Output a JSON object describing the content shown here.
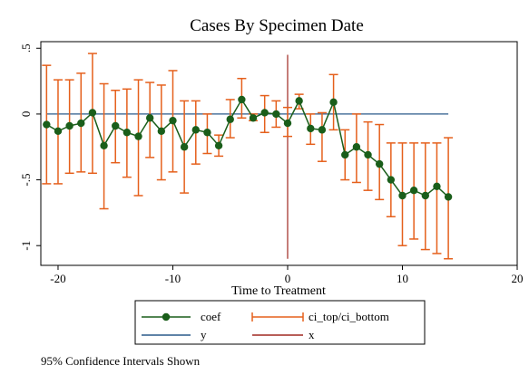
{
  "chart_data": {
    "type": "line",
    "title": "Cases By Specimen Date",
    "xlabel": "Time to Treatment",
    "ylabel": "",
    "xlim": [
      -21.5,
      20
    ],
    "ylim": [
      -1.15,
      0.55
    ],
    "xticks": [
      -20,
      -10,
      0,
      10,
      20
    ],
    "yticks": [
      0.5,
      0,
      -0.5,
      -1
    ],
    "ytick_labels": [
      ".5",
      "0",
      "-.5",
      "-1"
    ],
    "grid": false,
    "legend": [
      {
        "label": "coef",
        "color": "#1a5e1a"
      },
      {
        "label": "ci_top/ci_bottom",
        "color": "#e5601c"
      },
      {
        "label": "y",
        "color": "#2a5a8a"
      },
      {
        "label": "x",
        "color": "#a02820"
      }
    ],
    "note": "95% Confidence Intervals Shown",
    "series": [
      {
        "name": "coef",
        "x": [
          -21,
          -20,
          -19,
          -18,
          -17,
          -16,
          -15,
          -14,
          -13,
          -12,
          -11,
          -10,
          -9,
          -8,
          -7,
          -6,
          -5,
          -4,
          -3,
          -2,
          -1,
          0,
          1,
          2,
          3,
          4,
          5,
          6,
          7,
          8,
          9,
          10,
          11,
          12,
          13,
          14
        ],
        "values": [
          -0.08,
          -0.13,
          -0.09,
          -0.07,
          0.01,
          -0.24,
          -0.09,
          -0.14,
          -0.17,
          -0.03,
          -0.13,
          -0.05,
          -0.25,
          -0.12,
          -0.14,
          -0.24,
          -0.04,
          0.11,
          -0.03,
          0.01,
          0.0,
          -0.07,
          0.1,
          -0.11,
          -0.12,
          0.09,
          -0.31,
          -0.25,
          -0.31,
          -0.38,
          -0.5,
          -0.62,
          -0.58,
          -0.62,
          -0.55,
          -0.63
        ]
      },
      {
        "name": "ci_top/ci_bottom",
        "x": [
          -21,
          -20,
          -19,
          -18,
          -17,
          -16,
          -15,
          -14,
          -13,
          -12,
          -11,
          -10,
          -9,
          -8,
          -7,
          -6,
          -5,
          -4,
          -3,
          -2,
          -1,
          0,
          1,
          2,
          3,
          4,
          5,
          6,
          7,
          8,
          9,
          10,
          11,
          12,
          13,
          14
        ],
        "ci_top": [
          0.37,
          0.26,
          0.26,
          0.31,
          0.46,
          0.23,
          0.18,
          0.19,
          0.26,
          0.24,
          0.22,
          0.33,
          0.1,
          0.1,
          0.0,
          -0.16,
          0.11,
          0.27,
          0.0,
          0.14,
          0.1,
          0.05,
          0.15,
          0.0,
          0.01,
          0.3,
          -0.12,
          0.0,
          -0.06,
          -0.08,
          -0.22,
          -0.22,
          -0.22,
          -0.22,
          -0.22,
          -0.18
        ],
        "ci_bottom": [
          -0.53,
          -0.53,
          -0.45,
          -0.44,
          -0.45,
          -0.72,
          -0.37,
          -0.48,
          -0.62,
          -0.33,
          -0.5,
          -0.44,
          -0.6,
          -0.38,
          -0.3,
          -0.32,
          -0.18,
          -0.03,
          -0.05,
          -0.14,
          -0.1,
          -0.17,
          0.04,
          -0.23,
          -0.36,
          -0.12,
          -0.5,
          -0.52,
          -0.58,
          -0.65,
          -0.78,
          -1.0,
          -0.95,
          -1.03,
          -1.06,
          -1.1
        ]
      },
      {
        "name": "y",
        "x": [
          -21,
          14
        ],
        "values": [
          0,
          0
        ]
      },
      {
        "name": "x",
        "x": [
          0,
          0
        ],
        "values": [
          0.45,
          -1.1
        ]
      }
    ]
  }
}
